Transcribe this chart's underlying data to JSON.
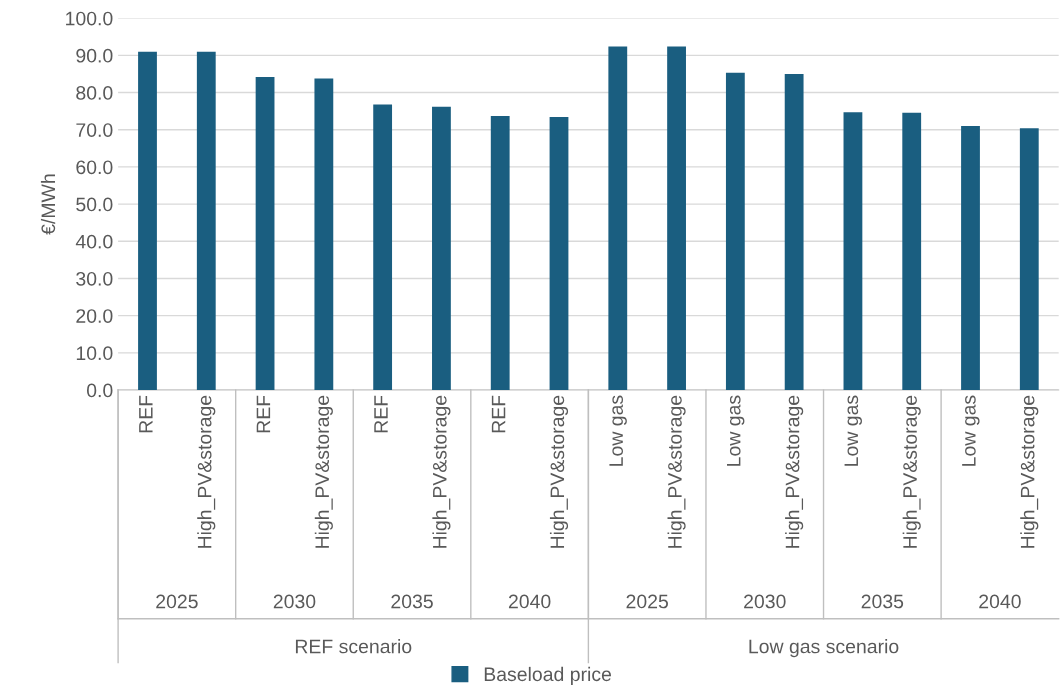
{
  "chart_data": {
    "type": "bar",
    "ylabel": "€/MWh",
    "categories": [
      "REF",
      "High_PV&storage",
      "REF",
      "High_PV&storage",
      "REF",
      "High_PV&storage",
      "REF",
      "High_PV&storage",
      "Low gas",
      "High_PV&storage",
      "Low gas",
      "High_PV&storage",
      "Low gas",
      "High_PV&storage",
      "Low gas",
      "High_PV&storage"
    ],
    "series": [
      {
        "name": "Baseload price",
        "color": "#1a5e80",
        "values": [
          91.0,
          91.0,
          84.2,
          83.8,
          76.8,
          76.2,
          73.7,
          73.4,
          92.4,
          92.4,
          85.3,
          85.0,
          74.7,
          74.6,
          71.0,
          70.4
        ]
      }
    ],
    "annotations": [
      "2025",
      "2030",
      "2035",
      "2040",
      "2025",
      "2030",
      "2035",
      "2040",
      "REF scenario",
      "Low gas scenario"
    ],
    "ylim": [
      0,
      100
    ],
    "yticks": [
      {
        "value": 0,
        "label": "0.0"
      },
      {
        "value": 10,
        "label": "10.0"
      },
      {
        "value": 20,
        "label": "20.0"
      },
      {
        "value": 30,
        "label": "30.0"
      },
      {
        "value": 40,
        "label": "40.0"
      },
      {
        "value": 50,
        "label": "50.0"
      },
      {
        "value": 60,
        "label": "60.0"
      },
      {
        "value": 70,
        "label": "70.0"
      },
      {
        "value": 80,
        "label": "80.0"
      },
      {
        "value": 90,
        "label": "90.0"
      },
      {
        "value": 100,
        "label": "100.0"
      }
    ],
    "grid": "y",
    "legend": "bottom"
  }
}
